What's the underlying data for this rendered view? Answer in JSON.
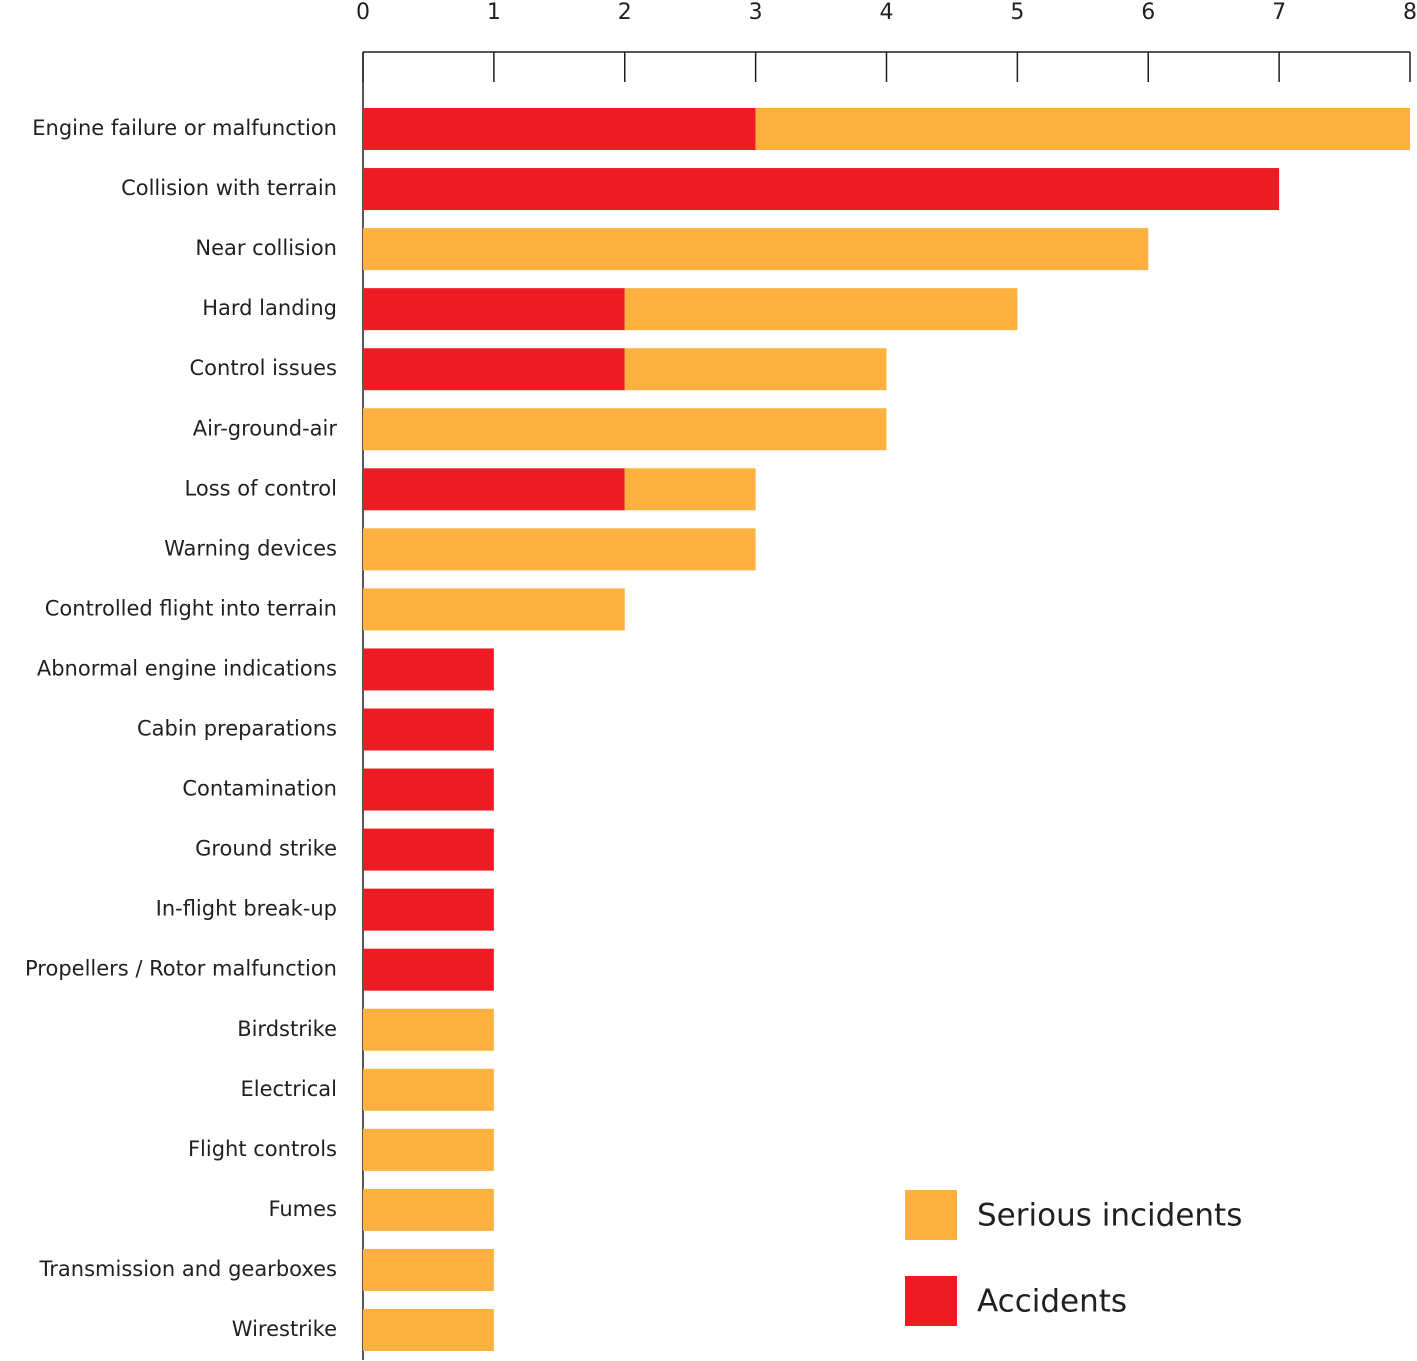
{
  "chart_data": {
    "type": "bar",
    "orientation": "horizontal",
    "stacked": true,
    "categories": [
      "Engine failure or malfunction",
      "Collision with terrain",
      "Near collision",
      "Hard landing",
      "Control issues",
      "Air-ground-air",
      "Loss of control",
      "Warning devices",
      "Controlled flight into terrain",
      "Abnormal engine indications",
      "Cabin preparations",
      "Contamination",
      "Ground strike",
      "In-flight break-up",
      "Propellers / Rotor malfunction",
      "Birdstrike",
      "Electrical",
      "Flight controls",
      "Fumes",
      "Transmission and gearboxes",
      "Wirestrike"
    ],
    "series": [
      {
        "name": "Accidents",
        "color": "#ed1c24",
        "values": [
          3,
          7,
          0,
          2,
          2,
          0,
          2,
          0,
          0,
          1,
          1,
          1,
          1,
          1,
          1,
          0,
          0,
          0,
          0,
          0,
          0
        ]
      },
      {
        "name": "Serious incidents",
        "color": "#fbb040",
        "values": [
          5,
          0,
          6,
          3,
          2,
          4,
          1,
          3,
          2,
          0,
          0,
          0,
          0,
          0,
          0,
          1,
          1,
          1,
          1,
          1,
          1
        ]
      }
    ],
    "xlim": [
      0,
      8
    ],
    "xticks": [
      "0",
      "1",
      "2",
      "3",
      "4",
      "5",
      "6",
      "7",
      "8"
    ],
    "axis_position": "top",
    "grid": false,
    "legend": {
      "position": "bottom-right",
      "items": [
        {
          "label": "Serious incidents",
          "color": "#fbb040"
        },
        {
          "label": "Accidents",
          "color": "#ed1c24"
        }
      ]
    },
    "title": "",
    "xlabel": "",
    "ylabel": ""
  }
}
